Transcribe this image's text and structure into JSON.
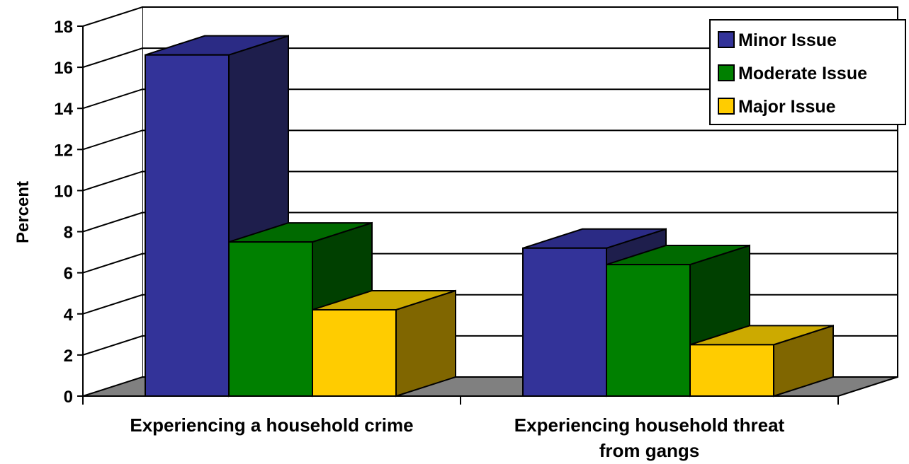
{
  "chart_data": {
    "type": "bar",
    "title": "",
    "xlabel": "",
    "ylabel": "Percent",
    "ylim": [
      0,
      18
    ],
    "yticks": [
      0,
      2,
      4,
      6,
      8,
      10,
      12,
      14,
      16,
      18
    ],
    "grid": true,
    "three_d": true,
    "legend_position": "top-right",
    "categories": [
      [
        "Experiencing a household crime"
      ],
      [
        "Experiencing household threat",
        "from gangs"
      ]
    ],
    "series": [
      {
        "name": "Minor Issue",
        "color": "#333399",
        "side": "#1e1e4c",
        "top": "#2b2b85",
        "values": [
          16.6,
          7.2
        ]
      },
      {
        "name": "Moderate Issue",
        "color": "#008000",
        "side": "#004000",
        "top": "#006a00",
        "values": [
          7.5,
          6.4
        ]
      },
      {
        "name": "Major Issue",
        "color": "#ffcc00",
        "side": "#806600",
        "top": "#ccaa00",
        "values": [
          4.2,
          2.5
        ]
      }
    ],
    "floor_color": "#808080"
  }
}
